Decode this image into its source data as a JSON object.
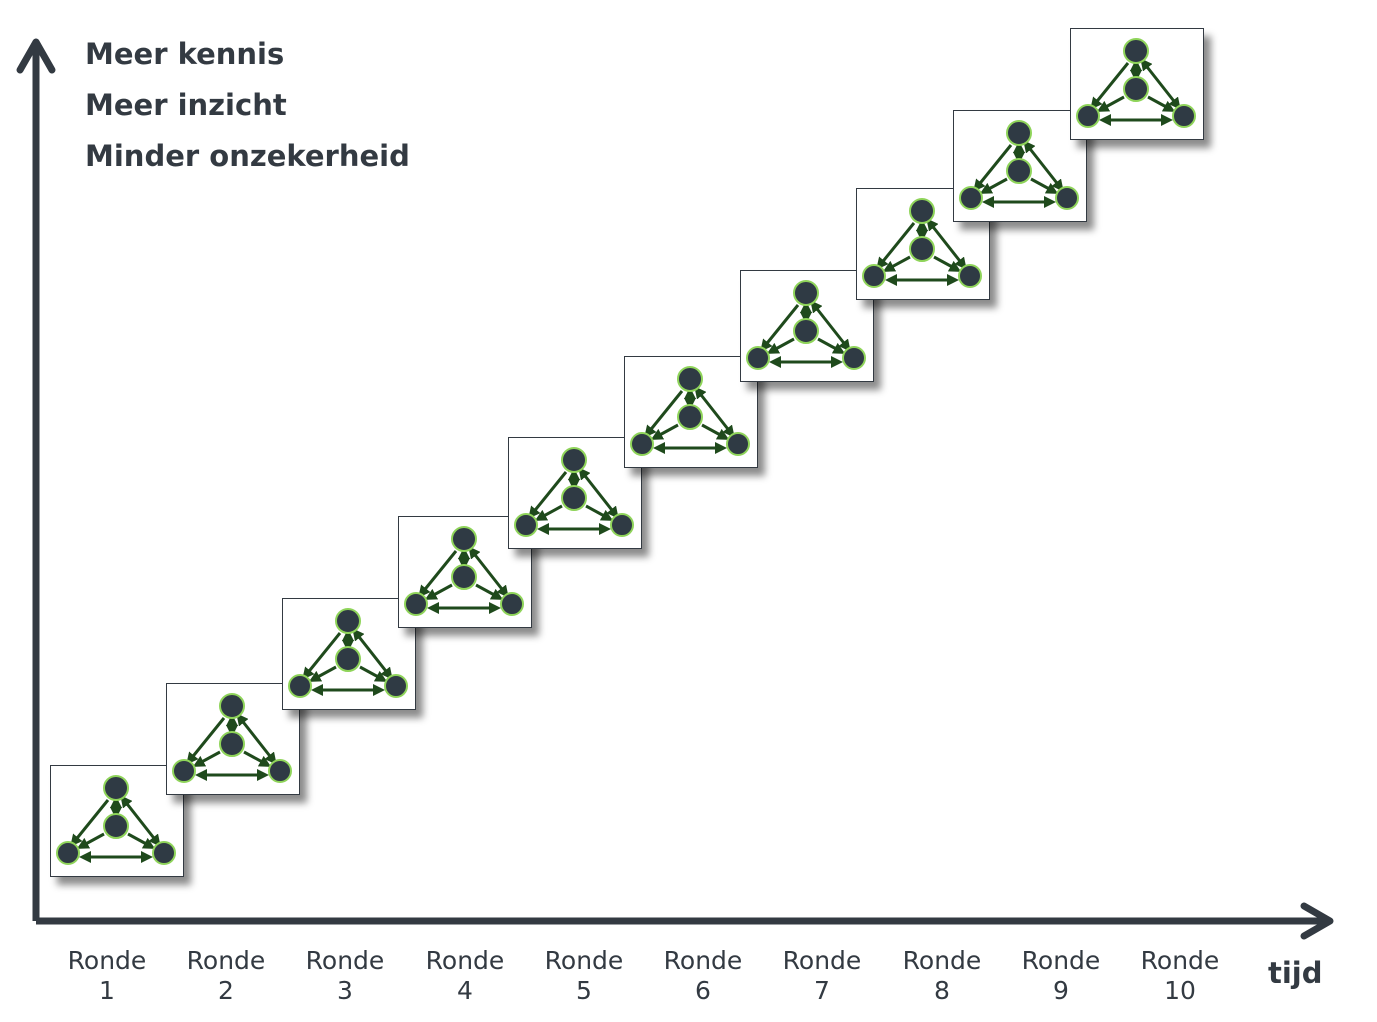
{
  "y_labels": [
    "Meer kennis",
    "Meer inzicht",
    "Minder onzekerheid"
  ],
  "x_axis_label": "tijd",
  "rounds": [
    {
      "word": "Ronde",
      "num": "1"
    },
    {
      "word": "Ronde",
      "num": "2"
    },
    {
      "word": "Ronde",
      "num": "3"
    },
    {
      "word": "Ronde",
      "num": "4"
    },
    {
      "word": "Ronde",
      "num": "5"
    },
    {
      "word": "Ronde",
      "num": "6"
    },
    {
      "word": "Ronde",
      "num": "7"
    },
    {
      "word": "Ronde",
      "num": "8"
    },
    {
      "word": "Ronde",
      "num": "9"
    },
    {
      "word": "Ronde",
      "num": "10"
    }
  ],
  "colors": {
    "axis": "#333a42",
    "node_fill": "#2f3a44",
    "node_ring": "#8fd45a",
    "arrow": "#1f4a1c"
  }
}
